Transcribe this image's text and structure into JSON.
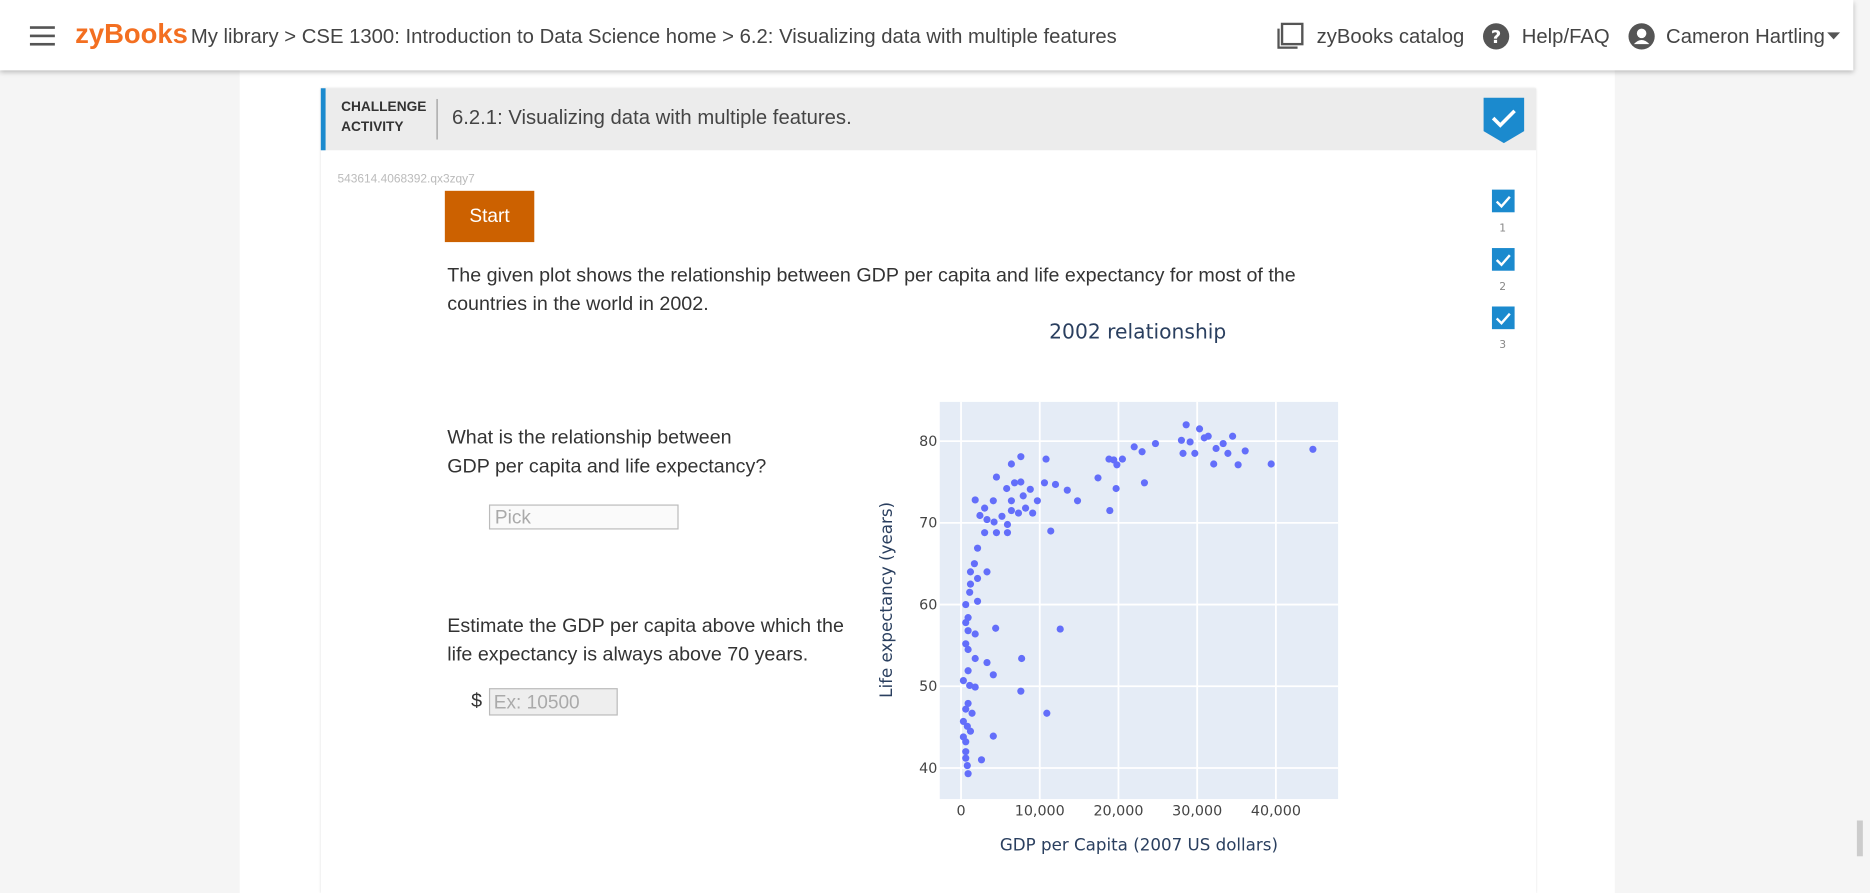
{
  "header": {
    "logo": "zyBooks",
    "breadcrumb": "My library > CSE 1300: Introduction to Data Science home > 6.2: Visualizing data with multiple features",
    "catalog": "zyBooks catalog",
    "help": "Help/FAQ",
    "user": "Cameron Hartling"
  },
  "activity": {
    "kind": "CHALLENGE ACTIVITY",
    "title": "6.2.1: Visualizing data with multiple features.",
    "id": "543614.4068392.qx3zqy7",
    "start": "Start",
    "steps": [
      "1",
      "2",
      "3"
    ],
    "prompt": "The given plot shows the relationship between GDP per capita and life expectancy for most of the countries in the world in 2002.",
    "question1": "What is the relationship between GDP per capita and life expectancy?",
    "select": "Pick",
    "question2": "Estimate the GDP per capita above which the life expectancy is always above 70 years.",
    "currency": "$",
    "input_placeholder": "Ex: 10500"
  },
  "chart_data": {
    "type": "scatter",
    "title": "2002 relationship",
    "x_label": "GDP per Capita (2007 US dollars)",
    "y_label": "Life expectancy (years)",
    "color": "#636efa",
    "grid": true,
    "xlim": [
      -2700,
      47900
    ],
    "ylim": [
      36.2,
      84.8
    ],
    "xticks": [
      0,
      {
        "value": 10000,
        "label": "10,000"
      },
      {
        "value": 20000,
        "label": "20,000"
      },
      {
        "value": 30000,
        "label": "30,000"
      },
      {
        "value": 40000,
        "label": "40,000"
      }
    ],
    "yticks": [
      40,
      50,
      60,
      70,
      80
    ],
    "x": [
      28600,
      30300,
      28000,
      29100,
      30900,
      31400,
      32400,
      33300,
      33900,
      34500,
      36100,
      35200,
      32100,
      29700,
      28200,
      39400,
      44700,
      24700,
      23000,
      22000,
      23300,
      20500,
      19800,
      19400,
      18800,
      17400,
      19700,
      18900,
      14800,
      13500,
      12000,
      10800,
      10600,
      11400,
      9100,
      8800,
      7600,
      6400,
      4500,
      6800,
      7600,
      5800,
      6400,
      7900,
      9700,
      8200,
      7300,
      6400,
      5200,
      4100,
      3000,
      1800,
      2400,
      3300,
      4200,
      5900,
      3000,
      4500,
      5900,
      2100,
      1700,
      1200,
      3300,
      2100,
      1200,
      1100,
      2100,
      600,
      900,
      600,
      4400,
      900,
      1800,
      12600,
      600,
      900,
      1800,
      3300,
      7700,
      900,
      4100,
      300,
      1100,
      1800,
      7600,
      900,
      600,
      1400,
      10900,
      300,
      800,
      1200,
      300,
      600,
      4100,
      600,
      600,
      2600,
      800,
      900
    ],
    "values": [
      82.0,
      81.5,
      80.1,
      79.9,
      80.4,
      80.6,
      79.1,
      79.7,
      78.5,
      80.6,
      78.8,
      77.1,
      77.2,
      78.5,
      78.5,
      77.2,
      79.0,
      79.7,
      78.7,
      79.3,
      74.9,
      77.8,
      77.1,
      77.7,
      77.8,
      75.5,
      74.2,
      71.5,
      72.7,
      74.0,
      74.7,
      77.8,
      74.9,
      69.0,
      71.2,
      74.1,
      78.1,
      77.2,
      75.6,
      74.9,
      75.0,
      74.2,
      72.7,
      73.3,
      72.7,
      71.8,
      71.2,
      71.5,
      70.8,
      72.7,
      71.8,
      72.8,
      70.9,
      70.4,
      70.1,
      69.8,
      68.8,
      68.8,
      68.8,
      66.9,
      65.0,
      64.0,
      64.0,
      63.2,
      62.5,
      61.5,
      60.4,
      60.0,
      58.4,
      57.8,
      57.1,
      56.8,
      56.4,
      57.0,
      55.2,
      54.5,
      53.4,
      52.9,
      53.4,
      51.9,
      51.4,
      50.7,
      50.1,
      49.9,
      49.4,
      47.9,
      47.2,
      46.7,
      46.7,
      45.7,
      45.1,
      44.5,
      43.8,
      43.2,
      43.9,
      42.0,
      41.2,
      41.0,
      40.3,
      39.3
    ]
  }
}
